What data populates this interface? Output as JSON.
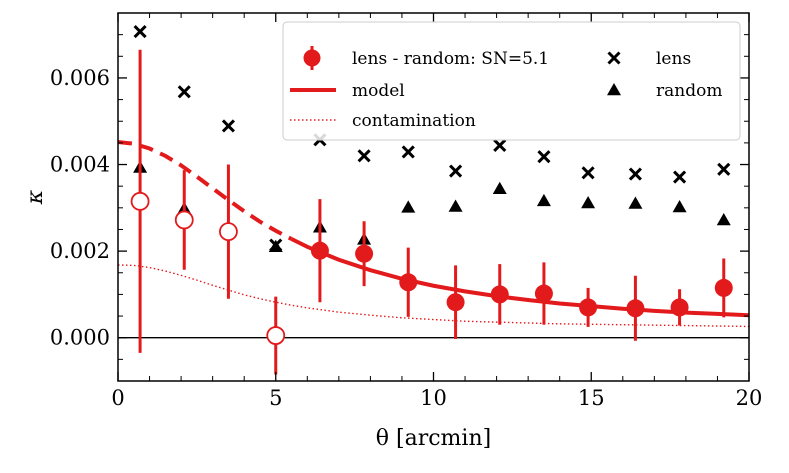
{
  "chart_data": {
    "type": "scatter",
    "xlabel": "θ [arcmin]",
    "ylabel": "κ",
    "xlim": [
      0,
      20
    ],
    "ylim": [
      -0.001,
      0.0075
    ],
    "xticks": [
      0,
      5,
      10,
      15,
      20
    ],
    "xtick_labels": [
      "0",
      "5",
      "10",
      "15",
      "20"
    ],
    "yticks": [
      0,
      0.002,
      0.004,
      0.006
    ],
    "ytick_labels": [
      "0.000",
      "0.002",
      "0.004",
      "0.006"
    ],
    "colors": {
      "red": "#e31a1c",
      "black": "#000000"
    },
    "legend": {
      "placement": "top-right",
      "entries": [
        {
          "label": "lens - random: SN=5.1",
          "marker": "filled-circle-errorbar"
        },
        {
          "label": "lens",
          "marker": "x"
        },
        {
          "label": "model",
          "marker": "solid-line"
        },
        {
          "label": "random",
          "marker": "triangle"
        },
        {
          "label": "contamination",
          "marker": "dotted-line"
        }
      ]
    },
    "series": [
      {
        "name": "lens - random: SN=5.1",
        "style": "circle-errorbar",
        "x": [
          0.7,
          2.1,
          3.5,
          5.0,
          6.4,
          7.8,
          9.2,
          10.7,
          12.1,
          13.5,
          14.9,
          16.4,
          17.8,
          19.2
        ],
        "y": [
          0.00315,
          0.00272,
          0.00245,
          5e-05,
          0.00201,
          0.00194,
          0.00128,
          0.00082,
          0.001,
          0.00102,
          0.0007,
          0.00068,
          0.0007,
          0.00115
        ],
        "yerr": [
          0.0035,
          0.00115,
          0.00155,
          0.0009,
          0.00119,
          0.00075,
          0.0008,
          0.00085,
          0.0007,
          0.00072,
          0.00045,
          0.00075,
          0.00042,
          0.00068
        ],
        "open_markers": [
          true,
          true,
          true,
          true,
          false,
          false,
          false,
          false,
          false,
          false,
          false,
          false,
          false,
          false
        ]
      },
      {
        "name": "lens",
        "style": "x",
        "x": [
          0.7,
          2.1,
          3.5,
          5.0,
          6.4,
          7.8,
          9.2,
          10.7,
          12.1,
          13.5,
          14.9,
          16.4,
          17.8,
          19.2
        ],
        "y": [
          0.00707,
          0.00568,
          0.00489,
          0.00214,
          0.00457,
          0.0042,
          0.00429,
          0.00385,
          0.00444,
          0.00418,
          0.00381,
          0.00378,
          0.00371,
          0.00389
        ]
      },
      {
        "name": "random",
        "style": "triangle",
        "x": [
          0.7,
          2.1,
          3.5,
          5.0,
          6.4,
          7.8,
          9.2,
          10.7,
          12.1,
          13.5,
          14.9,
          16.4,
          17.8,
          19.2
        ],
        "y": [
          0.00393,
          0.00298,
          0.00243,
          0.0021,
          0.00255,
          0.00227,
          0.00301,
          0.00303,
          0.00344,
          0.00316,
          0.00311,
          0.0031,
          0.00302,
          0.00272
        ]
      },
      {
        "name": "model",
        "style": "line",
        "dashed_below_x": 5.5,
        "x": [
          0,
          0.5,
          1,
          1.5,
          2,
          2.5,
          3,
          3.5,
          4,
          4.5,
          5,
          5.5,
          6,
          7,
          8,
          9,
          10,
          11,
          12,
          13,
          14,
          15,
          16,
          17,
          18,
          19,
          20
        ],
        "y": [
          0.00452,
          0.00448,
          0.00437,
          0.0042,
          0.00398,
          0.00372,
          0.00345,
          0.00318,
          0.00292,
          0.00268,
          0.00247,
          0.00228,
          0.0021,
          0.0018,
          0.00156,
          0.00136,
          0.0012,
          0.00107,
          0.00096,
          0.00087,
          0.00079,
          0.00073,
          0.00067,
          0.00062,
          0.00058,
          0.00055,
          0.00052
        ]
      },
      {
        "name": "contamination",
        "style": "dotted",
        "x": [
          0,
          0.5,
          1,
          1.5,
          2,
          2.5,
          3,
          3.5,
          4,
          4.5,
          5,
          5.5,
          6,
          7,
          8,
          9,
          10,
          11,
          12,
          13,
          14,
          15,
          16,
          17,
          18,
          19,
          20
        ],
        "y": [
          0.00168,
          0.00167,
          0.00162,
          0.00154,
          0.00144,
          0.00133,
          0.00121,
          0.0011,
          0.00099,
          0.0009,
          0.00082,
          0.00075,
          0.00069,
          0.00059,
          0.00052,
          0.00046,
          0.00042,
          0.00038,
          0.00036,
          0.00034,
          0.00032,
          0.00031,
          0.0003,
          0.00029,
          0.00028,
          0.00027,
          0.00026
        ]
      }
    ],
    "reference_line": {
      "y": 0
    }
  }
}
